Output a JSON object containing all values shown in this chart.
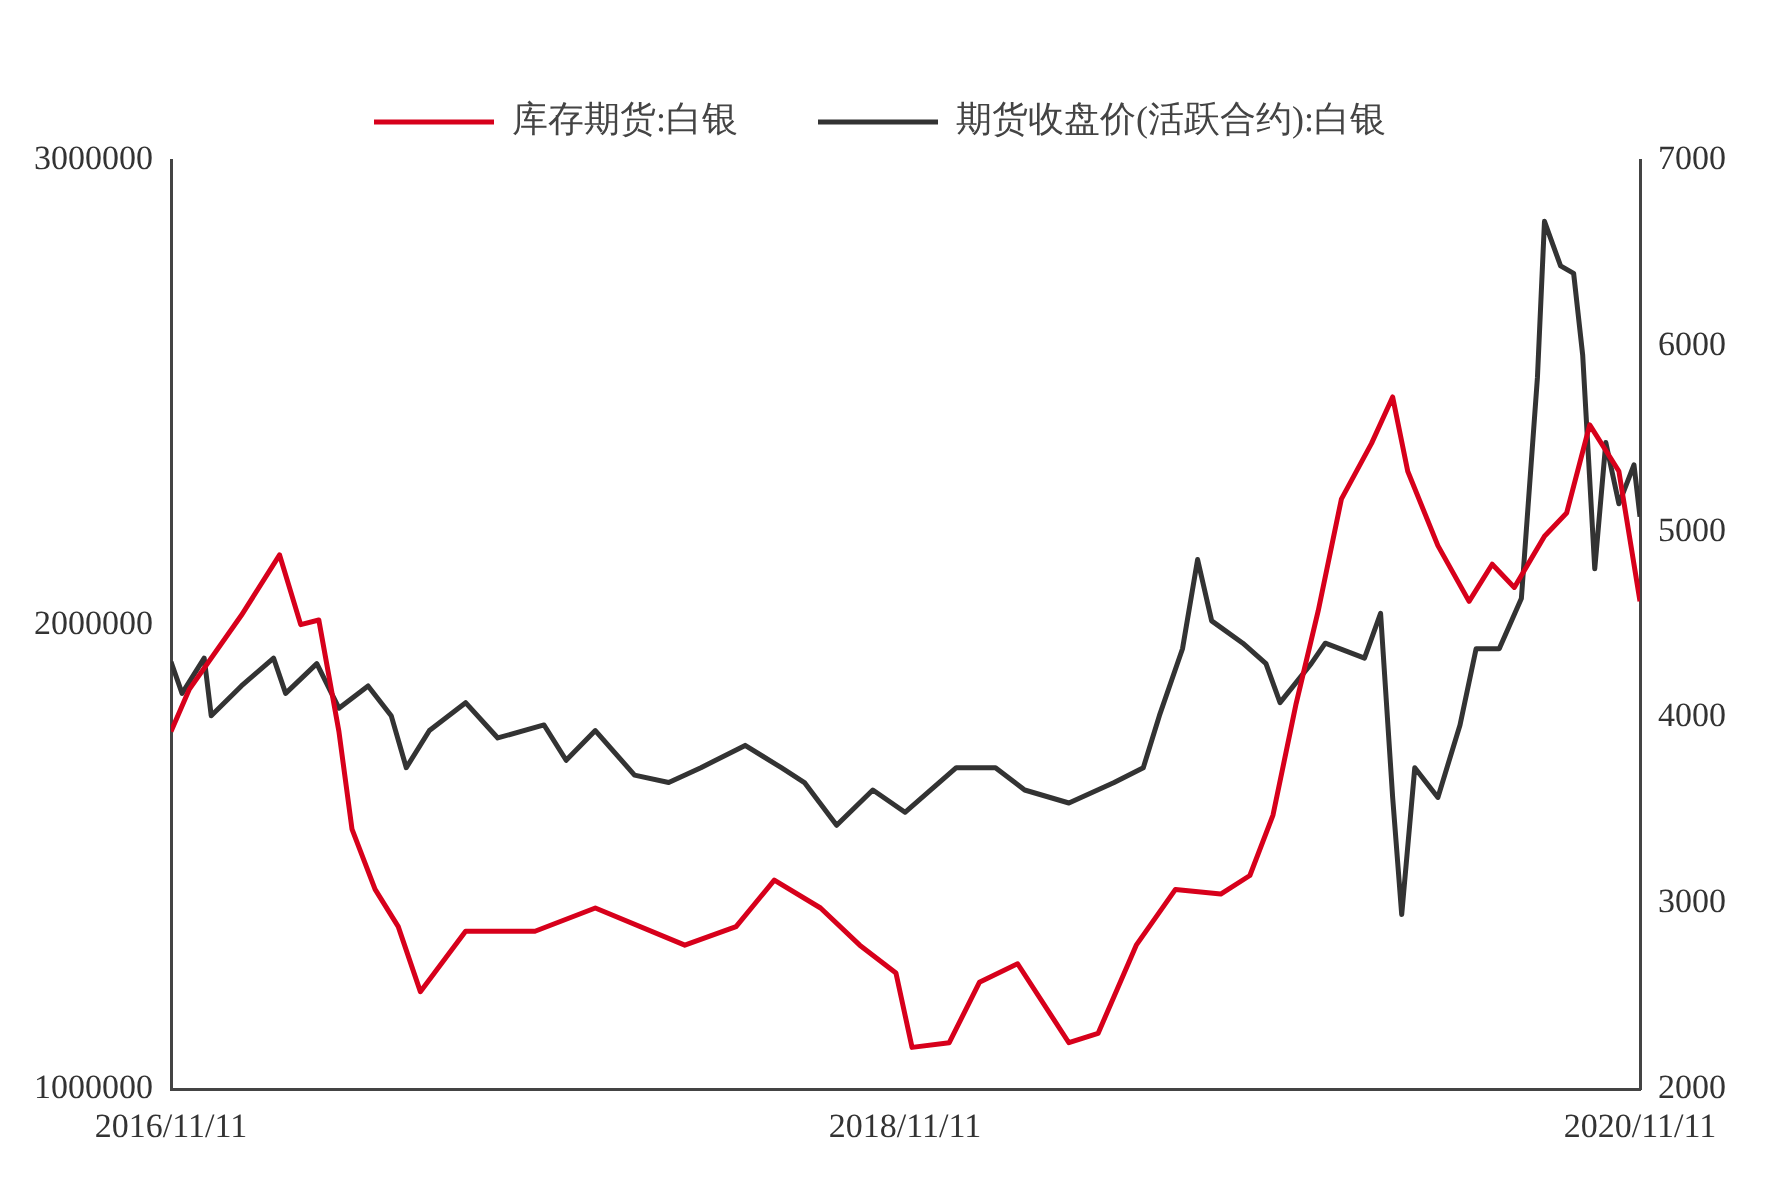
{
  "chart_data": {
    "type": "line",
    "xlim": [
      "2016-11-11",
      "2020-11-11"
    ],
    "xticks": [
      {
        "value": "2016-11-11",
        "label": "2016/11/11"
      },
      {
        "value": "2018-11-11",
        "label": "2018/11/11"
      },
      {
        "value": "2020-11-11",
        "label": "2020/11/11"
      }
    ],
    "ylim": [
      1000000,
      3000000
    ],
    "yticks": [
      1000000,
      2000000,
      3000000
    ],
    "y2lim": [
      2000,
      7000
    ],
    "y2ticks": [
      2000,
      3000,
      4000,
      5000,
      6000,
      7000
    ],
    "grid": false,
    "legend": "top",
    "marker": "none",
    "line_style": "solid",
    "series": [
      {
        "name": "库存期货:白银",
        "color": "#d7001b",
        "x": [
          "2016-11-11",
          "2016-11-29",
          "2017-01-20",
          "2017-02-27",
          "2017-03-20",
          "2017-04-07",
          "2017-04-27",
          "2017-05-10",
          "2017-06-02",
          "2017-06-25",
          "2017-07-17",
          "2017-08-31",
          "2017-11-08",
          "2018-01-07",
          "2018-04-06",
          "2018-05-27",
          "2018-07-04",
          "2018-08-19",
          "2018-09-27",
          "2018-11-02",
          "2018-11-18",
          "2018-12-25",
          "2019-01-24",
          "2019-03-03",
          "2019-04-23",
          "2019-05-22",
          "2019-06-29",
          "2019-08-07",
          "2019-09-21",
          "2019-10-20",
          "2019-11-12",
          "2019-12-05",
          "2019-12-27",
          "2020-01-19",
          "2020-02-18",
          "2020-03-10",
          "2020-03-25",
          "2020-04-24",
          "2020-05-25",
          "2020-06-17",
          "2020-07-09",
          "2020-08-08",
          "2020-08-30",
          "2020-09-22",
          "2020-10-21",
          "2020-11-11"
        ],
        "values": [
          1770000,
          1860000,
          2020000,
          2150000,
          2000000,
          2010000,
          1770000,
          1560000,
          1430000,
          1350000,
          1210000,
          1340000,
          1340000,
          1390000,
          1310000,
          1350000,
          1450000,
          1390000,
          1310000,
          1250000,
          1090000,
          1100000,
          1230000,
          1270000,
          1100000,
          1120000,
          1310000,
          1430000,
          1420000,
          1460000,
          1590000,
          1830000,
          2030000,
          2270000,
          2390000,
          2490000,
          2330000,
          2170000,
          2050000,
          2130000,
          2080000,
          2190000,
          2240000,
          2430000,
          2330000,
          2050000
        ]
      },
      {
        "name": "期货收盘价(活跃合约):白银",
        "color": "#333333",
        "axis": "y2",
        "x": [
          "2016-11-11",
          "2016-11-22",
          "2016-12-14",
          "2016-12-21",
          "2017-01-20",
          "2017-02-21",
          "2017-03-05",
          "2017-04-05",
          "2017-04-27",
          "2017-05-26",
          "2017-06-18",
          "2017-07-03",
          "2017-07-26",
          "2017-08-31",
          "2017-10-02",
          "2017-11-17",
          "2017-12-09",
          "2018-01-07",
          "2018-02-15",
          "2018-03-21",
          "2018-04-22",
          "2018-06-05",
          "2018-07-11",
          "2018-08-03",
          "2018-09-04",
          "2018-10-10",
          "2018-11-11",
          "2019-01-01",
          "2019-02-09",
          "2019-03-10",
          "2019-04-23",
          "2019-06-07",
          "2019-07-06",
          "2019-07-22",
          "2019-08-14",
          "2019-08-29",
          "2019-09-12",
          "2019-10-13",
          "2019-11-05",
          "2019-11-19",
          "2019-12-20",
          "2020-01-03",
          "2020-02-11",
          "2020-02-27",
          "2020-03-10",
          "2020-03-19",
          "2020-04-01",
          "2020-04-24",
          "2020-05-16",
          "2020-06-01",
          "2020-06-24",
          "2020-07-16",
          "2020-08-01",
          "2020-08-08",
          "2020-08-24",
          "2020-09-06",
          "2020-09-15",
          "2020-09-27",
          "2020-10-08",
          "2020-10-21",
          "2020-11-05",
          "2020-11-11"
        ],
        "values": [
          4300,
          4130,
          4320,
          4010,
          4170,
          4320,
          4130,
          4290,
          4050,
          4170,
          4010,
          3730,
          3930,
          4080,
          3890,
          3960,
          3770,
          3930,
          3690,
          3650,
          3730,
          3850,
          3730,
          3650,
          3420,
          3610,
          3490,
          3730,
          3730,
          3610,
          3540,
          3650,
          3730,
          4010,
          4370,
          4850,
          4520,
          4400,
          4290,
          4080,
          4290,
          4400,
          4320,
          4560,
          3570,
          2940,
          3730,
          3570,
          3960,
          4370,
          4370,
          4640,
          5830,
          6670,
          6430,
          6390,
          5950,
          4800,
          5480,
          5150,
          5360,
          5080
        ]
      }
    ]
  }
}
